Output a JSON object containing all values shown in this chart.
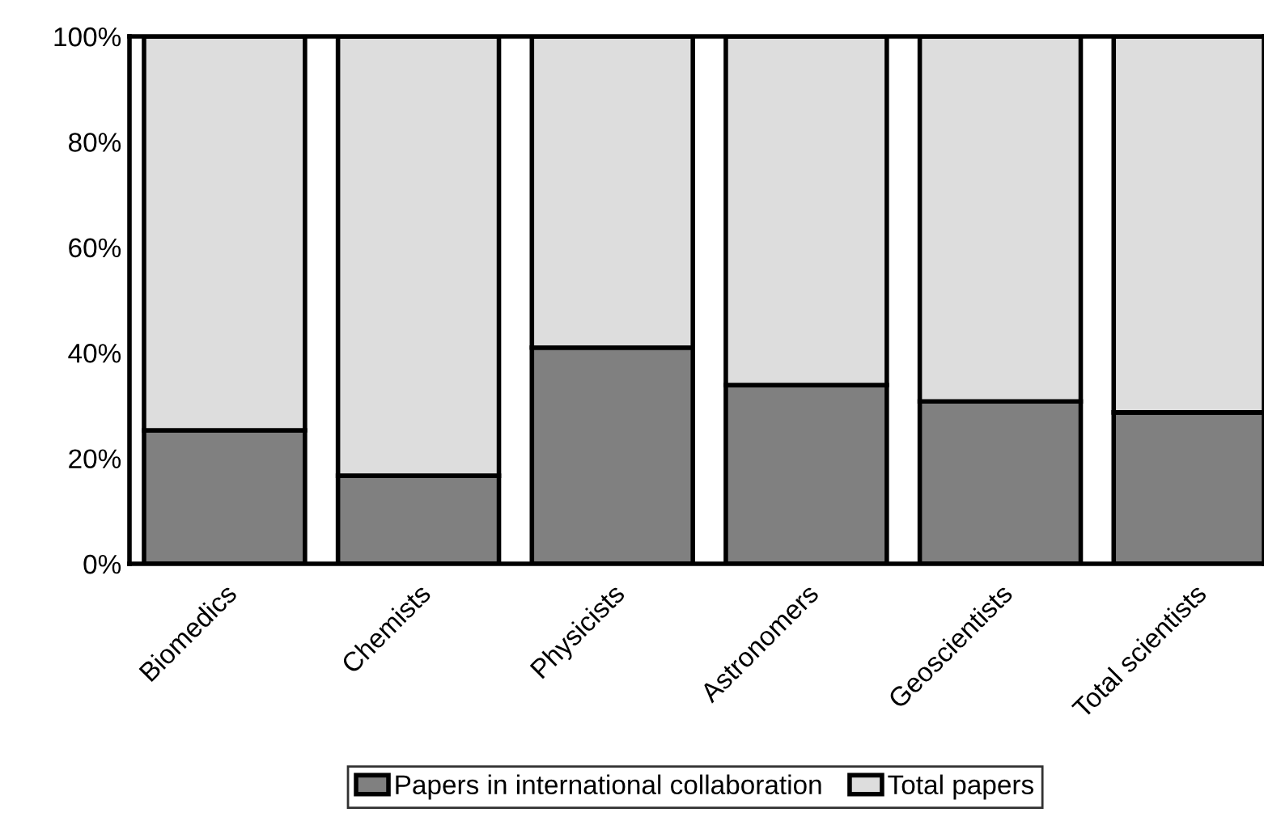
{
  "chart_data": {
    "type": "bar",
    "stacked": true,
    "categories": [
      "Biomedics",
      "Chemists",
      "Physicists",
      "Astronomers",
      "Geoscientists",
      "Total scientists"
    ],
    "series": [
      {
        "name": "Papers in international collaboration",
        "color": "#808080",
        "values": [
          25.3,
          16.7,
          41.0,
          33.9,
          30.8,
          28.7
        ]
      },
      {
        "name": "Total papers",
        "color": "#dddddd",
        "values": [
          74.7,
          83.3,
          59.0,
          66.1,
          69.2,
          71.3
        ]
      }
    ],
    "ylim": [
      0,
      100
    ],
    "yticks": [
      {
        "value": 0,
        "label": "0%"
      },
      {
        "value": 20,
        "label": "20%"
      },
      {
        "value": 40,
        "label": "40%"
      },
      {
        "value": 60,
        "label": "60%"
      },
      {
        "value": 80,
        "label": "80%"
      },
      {
        "value": 100,
        "label": "100%"
      }
    ],
    "grid": false,
    "legend": "bottom"
  }
}
